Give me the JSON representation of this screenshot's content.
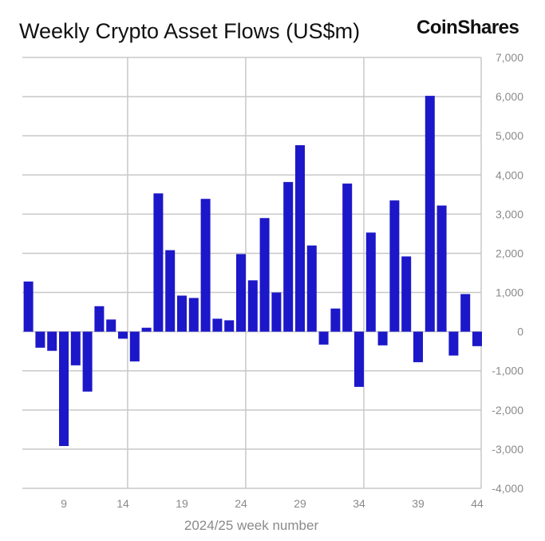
{
  "logo": "CoinShares",
  "chart_data": {
    "type": "bar",
    "title": "Weekly Crypto Asset Flows (US$m)",
    "xlabel": "2024/25 week number",
    "ylabel": "",
    "ylim": [
      -4000,
      7000
    ],
    "yticks": [
      7000,
      6000,
      5000,
      4000,
      3000,
      2000,
      1000,
      0,
      -1000,
      -2000,
      -3000,
      -4000
    ],
    "ytick_labels": [
      "7,000",
      "6,000",
      "5,000",
      "4,000",
      "3,000",
      "2,000",
      "1,000",
      "0",
      "-1,000",
      "-2,000",
      "-3,000",
      "-4,000"
    ],
    "xticks": [
      9,
      14,
      19,
      24,
      29,
      34,
      39,
      44
    ],
    "xtick_labels": [
      "9",
      "14",
      "19",
      "24",
      "29",
      "34",
      "39",
      "44"
    ],
    "y_axis_side": "right",
    "grid": true,
    "bar_color": "#1c17c8",
    "categories": [
      6,
      7,
      8,
      9,
      10,
      11,
      12,
      13,
      14,
      15,
      16,
      17,
      18,
      19,
      20,
      21,
      22,
      23,
      24,
      25,
      26,
      27,
      28,
      29,
      30,
      31,
      32,
      33,
      34,
      35,
      36,
      37,
      38,
      39,
      40,
      41,
      42,
      43,
      44
    ],
    "values": [
      1280,
      -410,
      -490,
      -2920,
      -860,
      -1530,
      650,
      310,
      -180,
      -760,
      100,
      3530,
      2080,
      920,
      860,
      3390,
      330,
      290,
      1980,
      1310,
      2900,
      1000,
      3820,
      4760,
      2200,
      -330,
      590,
      3780,
      -1410,
      2530,
      -350,
      3350,
      1920,
      -780,
      6020,
      3220,
      -610,
      960,
      -370
    ]
  }
}
